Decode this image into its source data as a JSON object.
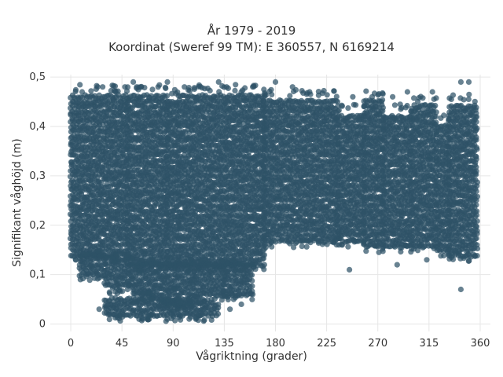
{
  "chart_data": {
    "type": "scatter",
    "title_lines": [
      "År 1979 - 2019",
      "Koordinat (Sweref 99 TM): E 360557, N 6169214"
    ],
    "xlabel": "Vågriktning (grader)",
    "ylabel": "Signifikant våghöjd (m)",
    "xlim": [
      -18,
      369
    ],
    "ylim": [
      -0.015,
      0.505
    ],
    "x_ticks": [
      {
        "value": 0,
        "label": "0"
      },
      {
        "value": 45,
        "label": "45"
      },
      {
        "value": 90,
        "label": "90"
      },
      {
        "value": 135,
        "label": "135"
      },
      {
        "value": 180,
        "label": "180"
      },
      {
        "value": 225,
        "label": "225"
      },
      {
        "value": 270,
        "label": "270"
      },
      {
        "value": 315,
        "label": "315"
      },
      {
        "value": 360,
        "label": "360"
      }
    ],
    "y_ticks": [
      {
        "value": 0,
        "label": "0"
      },
      {
        "value": 0.1,
        "label": "0,1"
      },
      {
        "value": 0.2,
        "label": "0,2"
      },
      {
        "value": 0.3,
        "label": "0,3"
      },
      {
        "value": 0.4,
        "label": "0,4"
      },
      {
        "value": 0.5,
        "label": "0,5"
      }
    ],
    "grid": true,
    "marker_color": "#2e5266",
    "background_color": "#ffffff",
    "grid_color": "#e6e6e6",
    "bands": [
      {
        "x": [
          0,
          50
        ],
        "y": [
          0.14,
          0.47
        ]
      },
      {
        "x": [
          50,
          85
        ],
        "y": [
          0.12,
          0.47
        ]
      },
      {
        "x": [
          85,
          95
        ],
        "y": [
          0.12,
          0.46
        ]
      },
      {
        "x": [
          95,
          170
        ],
        "y": [
          0.12,
          0.47
        ]
      },
      {
        "x": [
          170,
          235
        ],
        "y": [
          0.17,
          0.46
        ]
      },
      {
        "x": [
          235,
          258
        ],
        "y": [
          0.17,
          0.43
        ]
      },
      {
        "x": [
          258,
          275
        ],
        "y": [
          0.16,
          0.46
        ]
      },
      {
        "x": [
          275,
          300
        ],
        "y": [
          0.16,
          0.43
        ]
      },
      {
        "x": [
          300,
          322
        ],
        "y": [
          0.16,
          0.45
        ]
      },
      {
        "x": [
          322,
          333
        ],
        "y": [
          0.15,
          0.41
        ]
      },
      {
        "x": [
          333,
          358
        ],
        "y": [
          0.14,
          0.45
        ]
      },
      {
        "x": [
          8,
          30
        ],
        "y": [
          0.1,
          0.14
        ]
      },
      {
        "x": [
          30,
          55
        ],
        "y": [
          0.08,
          0.13
        ]
      },
      {
        "x": [
          55,
          80
        ],
        "y": [
          0.06,
          0.12
        ]
      },
      {
        "x": [
          80,
          108
        ],
        "y": [
          0.04,
          0.12
        ]
      },
      {
        "x": [
          108,
          135
        ],
        "y": [
          0.06,
          0.12
        ]
      },
      {
        "x": [
          135,
          160
        ],
        "y": [
          0.06,
          0.12
        ]
      },
      {
        "x": [
          30,
          95
        ],
        "y": [
          0.02,
          0.06
        ]
      },
      {
        "x": [
          95,
          130
        ],
        "y": [
          0.02,
          0.04
        ]
      }
    ],
    "outliers": [
      {
        "x": 10,
        "y": 0.47
      },
      {
        "x": 28,
        "y": 0.48
      },
      {
        "x": 55,
        "y": 0.49
      },
      {
        "x": 58,
        "y": 0.48
      },
      {
        "x": 85,
        "y": 0.49
      },
      {
        "x": 100,
        "y": 0.48
      },
      {
        "x": 130,
        "y": 0.49
      },
      {
        "x": 137,
        "y": 0.48
      },
      {
        "x": 160,
        "y": 0.48
      },
      {
        "x": 180,
        "y": 0.49
      },
      {
        "x": 195,
        "y": 0.48
      },
      {
        "x": 210,
        "y": 0.47
      },
      {
        "x": 248,
        "y": 0.46
      },
      {
        "x": 265,
        "y": 0.46
      },
      {
        "x": 283,
        "y": 0.46
      },
      {
        "x": 296,
        "y": 0.47
      },
      {
        "x": 318,
        "y": 0.47
      },
      {
        "x": 343,
        "y": 0.49
      },
      {
        "x": 350,
        "y": 0.49
      },
      {
        "x": 40,
        "y": 0.03
      },
      {
        "x": 60,
        "y": 0.01
      },
      {
        "x": 85,
        "y": 0.01
      },
      {
        "x": 110,
        "y": 0.01
      },
      {
        "x": 150,
        "y": 0.04
      },
      {
        "x": 160,
        "y": 0.06
      },
      {
        "x": 245,
        "y": 0.11
      },
      {
        "x": 287,
        "y": 0.12
      },
      {
        "x": 313,
        "y": 0.13
      },
      {
        "x": 343,
        "y": 0.07
      },
      {
        "x": 25,
        "y": 0.03
      },
      {
        "x": 140,
        "y": 0.03
      }
    ]
  }
}
